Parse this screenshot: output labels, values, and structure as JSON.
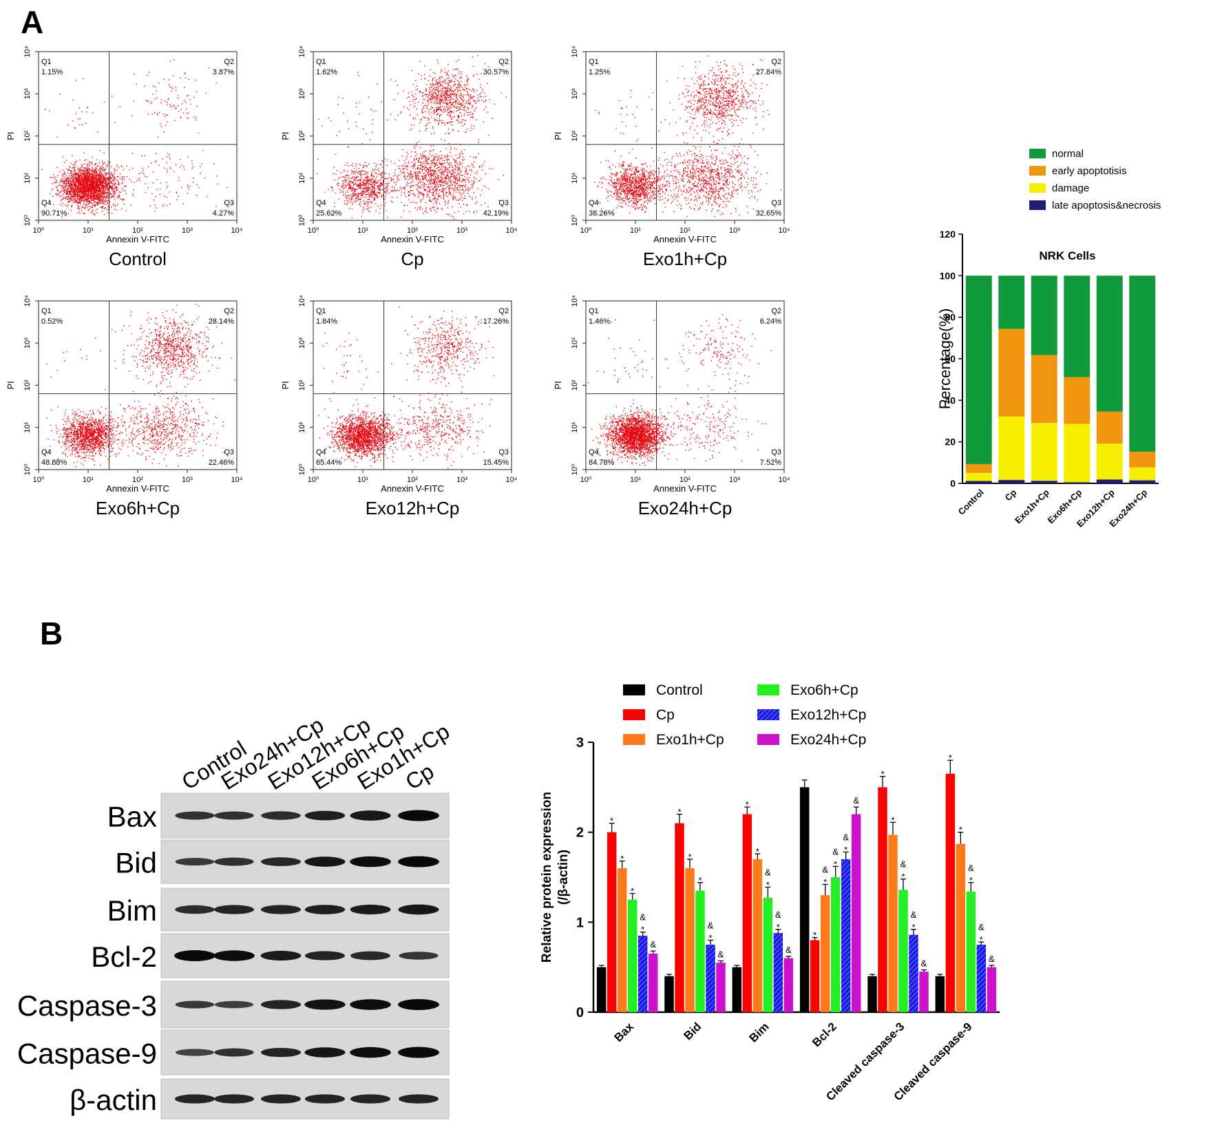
{
  "panel_labels": {
    "a": "A",
    "b": "B"
  },
  "flow": {
    "xlabel": "Annexin V-FITC",
    "ylabel": "PI",
    "ticks": [
      "10⁰",
      "10¹",
      "10²",
      "10³",
      "10⁴"
    ],
    "quadrant_names": [
      "Q1",
      "Q2",
      "Q3",
      "Q4"
    ],
    "point_color": "#e8000b",
    "plots": [
      {
        "title": "Control",
        "q1": "1.15%",
        "q2": "3.87%",
        "q3": "4.27%",
        "q4": "90.71%"
      },
      {
        "title": "Cp",
        "q1": "1.62%",
        "q2": "30.57%",
        "q3": "42.19%",
        "q4": "25.62%"
      },
      {
        "title": "Exo1h+Cp",
        "q1": "1.25%",
        "q2": "27.84%",
        "q3": "32.65%",
        "q4": "38.26%"
      },
      {
        "title": "Exo6h+Cp",
        "q1": "0.52%",
        "q2": "28.14%",
        "q3": "22.46%",
        "q4": "48.88%"
      },
      {
        "title": "Exo12h+Cp",
        "q1": "1.84%",
        "q2": "17.26%",
        "q3": "15.45%",
        "q4": "65.44%"
      },
      {
        "title": "Exo24h+Cp",
        "q1": "1.46%",
        "q2": "6.24%",
        "q3": "7.52%",
        "q4": "84.78%"
      }
    ]
  },
  "western": {
    "lanes": [
      "Control",
      "Exo24h+Cp",
      "Exo12h+Cp",
      "Exo6h+Cp",
      "Exo1h+Cp",
      "Cp"
    ],
    "proteins": [
      {
        "name": "Bax",
        "intensity": [
          0.55,
          0.55,
          0.6,
          0.75,
          0.85,
          1.0
        ]
      },
      {
        "name": "Bid",
        "intensity": [
          0.45,
          0.55,
          0.65,
          0.85,
          0.95,
          1.0
        ]
      },
      {
        "name": "Bim",
        "intensity": [
          0.6,
          0.7,
          0.7,
          0.75,
          0.8,
          0.85
        ]
      },
      {
        "name": "Bcl-2",
        "intensity": [
          1.0,
          0.95,
          0.8,
          0.7,
          0.65,
          0.5
        ]
      },
      {
        "name": "Caspase-3",
        "intensity": [
          0.45,
          0.4,
          0.7,
          0.9,
          0.95,
          1.0
        ]
      },
      {
        "name": "Caspase-9",
        "intensity": [
          0.35,
          0.55,
          0.7,
          0.85,
          0.95,
          1.0
        ]
      },
      {
        "name": "β-actin",
        "intensity": [
          0.7,
          0.7,
          0.7,
          0.7,
          0.7,
          0.7
        ]
      }
    ]
  },
  "chart_data": [
    {
      "type": "bar",
      "stacked": true,
      "title": "NRK Cells",
      "ylabel": "Percentage(%)",
      "ylim": [
        0,
        120
      ],
      "yticks": [
        0,
        20,
        40,
        60,
        80,
        100,
        120
      ],
      "legend_position": "top",
      "categories": [
        "Control",
        "Cp",
        "Exo1h+Cp",
        "Exo6h+Cp",
        "Exo12h+Cp",
        "Exo24h+Cp"
      ],
      "series": [
        {
          "name": "late apoptosis&necrosis",
          "color": "#1e1e78",
          "values": [
            1.15,
            1.62,
            1.25,
            0.52,
            1.84,
            1.46
          ]
        },
        {
          "name": "damage",
          "color": "#f6f000",
          "values": [
            3.87,
            30.57,
            27.84,
            28.14,
            17.26,
            6.24
          ]
        },
        {
          "name": "early apoptotisis",
          "color": "#f0960f",
          "values": [
            4.27,
            42.19,
            32.65,
            22.46,
            15.45,
            7.52
          ]
        },
        {
          "name": "normal",
          "color": "#119a3c",
          "values": [
            90.71,
            25.62,
            38.26,
            48.88,
            65.44,
            84.78
          ]
        }
      ],
      "legend_order": [
        "normal",
        "early apoptotisis",
        "damage",
        "late apoptosis&necrosis"
      ]
    },
    {
      "type": "bar",
      "ylabel": "Relative protein expression\n(/β-actin)",
      "ylim": [
        0,
        3
      ],
      "yticks": [
        0,
        1,
        2,
        3
      ],
      "legend_position": "top",
      "categories": [
        "Bax",
        "Bid",
        "Bim",
        "Bcl-2",
        "Cleaved caspase-3",
        "Cleaved caspase-9"
      ],
      "series": [
        {
          "name": "Control",
          "color": "#000000",
          "values": [
            0.5,
            0.4,
            0.5,
            2.5,
            0.4,
            0.4
          ],
          "errors": [
            0.02,
            0.02,
            0.02,
            0.08,
            0.02,
            0.02
          ],
          "marks": [
            "",
            "",
            "",
            "",
            "",
            ""
          ]
        },
        {
          "name": "Cp",
          "color": "#ff0000",
          "values": [
            2.0,
            2.1,
            2.2,
            0.8,
            2.5,
            2.65
          ],
          "errors": [
            0.1,
            0.1,
            0.08,
            0.03,
            0.12,
            0.15
          ],
          "marks": [
            "*",
            "*",
            "*",
            "*",
            "*",
            "*"
          ]
        },
        {
          "name": "Exo1h+Cp",
          "color": "#ff7a1a",
          "values": [
            1.6,
            1.6,
            1.7,
            1.3,
            1.97,
            1.87
          ],
          "errors": [
            0.08,
            0.1,
            0.06,
            0.12,
            0.14,
            0.13
          ],
          "marks": [
            "*",
            "*",
            "*",
            "&\n*",
            "*",
            "*"
          ]
        },
        {
          "name": "Exo6h+Cp",
          "color": "#22ee22",
          "values": [
            1.25,
            1.35,
            1.27,
            1.5,
            1.36,
            1.34
          ],
          "errors": [
            0.07,
            0.09,
            0.12,
            0.12,
            0.12,
            0.1
          ],
          "marks": [
            "*",
            "*",
            "&\n*",
            "&\n*",
            "&\n*",
            "&\n*"
          ]
        },
        {
          "name": "Exo12h+Cp",
          "color": "#1a1ae6",
          "values": [
            0.85,
            0.75,
            0.88,
            1.7,
            0.86,
            0.75
          ],
          "errors": [
            0.04,
            0.05,
            0.04,
            0.08,
            0.06,
            0.03
          ],
          "marks": [
            "&\n*",
            "&\n*",
            "&\n*",
            "&\n*",
            "&\n*",
            "&\n*"
          ],
          "hatched": true
        },
        {
          "name": "Exo24h+Cp",
          "color": "#cc11cc",
          "values": [
            0.65,
            0.55,
            0.6,
            2.2,
            0.45,
            0.5
          ],
          "errors": [
            0.03,
            0.02,
            0.02,
            0.08,
            0.02,
            0.02
          ],
          "marks": [
            "&",
            "&",
            "&",
            "&",
            "&",
            "&"
          ]
        }
      ]
    }
  ]
}
